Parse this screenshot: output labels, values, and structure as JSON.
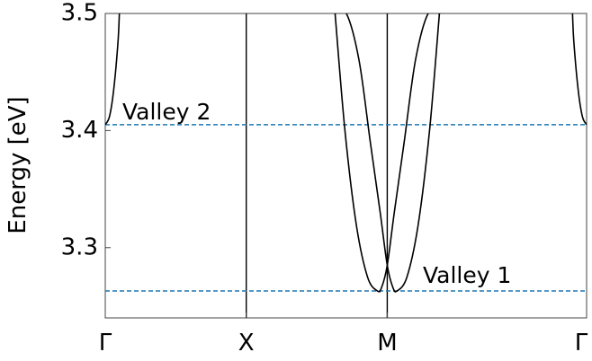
{
  "chart_data": {
    "type": "line",
    "title": "",
    "xlabel": "",
    "ylabel": "Energy [eV]",
    "ylim": [
      3.24,
      3.5
    ],
    "yticks": [
      3.3,
      3.4,
      3.5
    ],
    "ytick_labels": [
      "3.3",
      "3.4",
      "3.5"
    ],
    "xticks": [
      {
        "label": "Γ",
        "k": 0.0
      },
      {
        "label": "X",
        "k": 1.0
      },
      {
        "label": "M",
        "k": 2.0
      },
      {
        "label": "Γ",
        "k": 3.414
      }
    ],
    "xlim": [
      0.0,
      3.414
    ],
    "grid": false,
    "vertical_lines_at_k": [
      1.0,
      2.0
    ],
    "reference_lines": [
      {
        "label": "Valley 2",
        "energy": 3.405,
        "color": "#1f77b4",
        "style": "dashed"
      },
      {
        "label": "Valley 1",
        "energy": 3.263,
        "color": "#1f77b4",
        "style": "dashed"
      }
    ],
    "bands": [
      {
        "k": [
          0.0,
          0.03,
          0.06,
          0.09,
          0.1
        ],
        "energy": [
          3.405,
          3.412,
          3.435,
          3.475,
          3.5
        ]
      },
      {
        "k": [
          3.314,
          3.324,
          3.354,
          3.384,
          3.414
        ],
        "energy": [
          3.5,
          3.475,
          3.435,
          3.412,
          3.405
        ]
      },
      {
        "k": [
          1.63,
          1.7,
          1.78,
          1.86,
          1.93,
          1.96,
          2.0,
          2.05,
          2.12,
          2.2,
          2.29,
          2.37
        ],
        "energy": [
          3.5,
          3.4,
          3.32,
          3.275,
          3.263,
          3.266,
          3.285,
          3.33,
          3.39,
          3.46,
          3.5,
          3.5
        ]
      },
      {
        "k": [
          1.63,
          1.71,
          1.8,
          1.88,
          1.95,
          2.0,
          2.04,
          2.07,
          2.14,
          2.22,
          2.3,
          2.37
        ],
        "energy": [
          3.5,
          3.5,
          3.46,
          3.39,
          3.33,
          3.285,
          3.266,
          3.263,
          3.275,
          3.32,
          3.4,
          3.5
        ]
      }
    ]
  }
}
